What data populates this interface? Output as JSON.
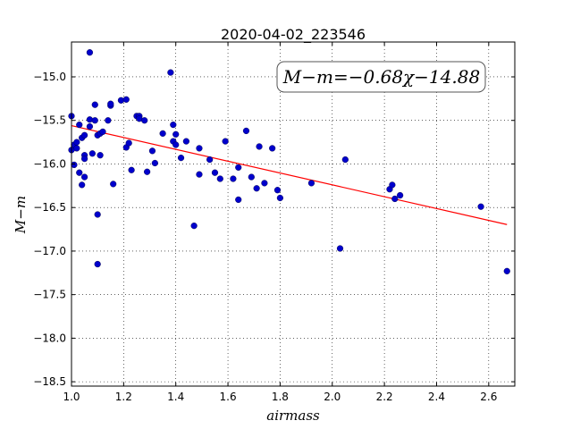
{
  "chart_data": {
    "type": "scatter",
    "title": "2020-04-02_223546",
    "xlabel": "airmass",
    "ylabel": "M−m",
    "xlim": [
      1.0,
      2.7
    ],
    "ylim": [
      -18.55,
      -14.6
    ],
    "y_inverted": false,
    "grid": true,
    "x_ticks": [
      "1.0",
      "1.2",
      "1.4",
      "1.6",
      "1.8",
      "2.0",
      "2.2",
      "2.4",
      "2.6"
    ],
    "x_tick_values": [
      1.0,
      1.2,
      1.4,
      1.6,
      1.8,
      2.0,
      2.2,
      2.4,
      2.6
    ],
    "y_ticks": [
      "−15.0",
      "−15.5",
      "−16.0",
      "−16.5",
      "−17.0",
      "−17.5",
      "−18.0",
      "−18.5"
    ],
    "y_tick_values": [
      -15.0,
      -15.5,
      -16.0,
      -16.5,
      -17.0,
      -17.5,
      -18.0,
      -18.5
    ],
    "annotation": "M−m=−0.68χ−14.88",
    "fit": {
      "slope": -0.68,
      "intercept": -14.88,
      "x_range": [
        1.0,
        2.67
      ],
      "color": "#ff0000"
    },
    "marker_color": "#0000cc",
    "points": [
      {
        "x": 1.0,
        "y": -15.45
      },
      {
        "x": 1.0,
        "y": -15.84
      },
      {
        "x": 1.01,
        "y": -15.78
      },
      {
        "x": 1.01,
        "y": -16.01
      },
      {
        "x": 1.02,
        "y": -15.82
      },
      {
        "x": 1.02,
        "y": -15.75
      },
      {
        "x": 1.03,
        "y": -15.55
      },
      {
        "x": 1.03,
        "y": -16.1
      },
      {
        "x": 1.04,
        "y": -16.24
      },
      {
        "x": 1.04,
        "y": -15.7
      },
      {
        "x": 1.05,
        "y": -15.67
      },
      {
        "x": 1.05,
        "y": -15.9
      },
      {
        "x": 1.05,
        "y": -16.15
      },
      {
        "x": 1.05,
        "y": -15.94
      },
      {
        "x": 1.07,
        "y": -15.57
      },
      {
        "x": 1.07,
        "y": -15.49
      },
      {
        "x": 1.07,
        "y": -14.72
      },
      {
        "x": 1.08,
        "y": -15.88
      },
      {
        "x": 1.09,
        "y": -15.32
      },
      {
        "x": 1.09,
        "y": -15.5
      },
      {
        "x": 1.1,
        "y": -15.67
      },
      {
        "x": 1.1,
        "y": -16.58
      },
      {
        "x": 1.1,
        "y": -17.15
      },
      {
        "x": 1.11,
        "y": -15.9
      },
      {
        "x": 1.11,
        "y": -15.65
      },
      {
        "x": 1.12,
        "y": -15.63
      },
      {
        "x": 1.14,
        "y": -15.5
      },
      {
        "x": 1.15,
        "y": -15.33
      },
      {
        "x": 1.15,
        "y": -15.31
      },
      {
        "x": 1.16,
        "y": -16.23
      },
      {
        "x": 1.19,
        "y": -15.27
      },
      {
        "x": 1.21,
        "y": -15.26
      },
      {
        "x": 1.21,
        "y": -15.81
      },
      {
        "x": 1.22,
        "y": -15.76
      },
      {
        "x": 1.23,
        "y": -16.07
      },
      {
        "x": 1.25,
        "y": -15.45
      },
      {
        "x": 1.26,
        "y": -15.45
      },
      {
        "x": 1.26,
        "y": -15.48
      },
      {
        "x": 1.28,
        "y": -15.5
      },
      {
        "x": 1.29,
        "y": -16.09
      },
      {
        "x": 1.31,
        "y": -15.85
      },
      {
        "x": 1.32,
        "y": -15.99
      },
      {
        "x": 1.35,
        "y": -15.65
      },
      {
        "x": 1.38,
        "y": -14.95
      },
      {
        "x": 1.39,
        "y": -15.74
      },
      {
        "x": 1.39,
        "y": -15.55
      },
      {
        "x": 1.4,
        "y": -15.66
      },
      {
        "x": 1.4,
        "y": -15.78
      },
      {
        "x": 1.42,
        "y": -15.93
      },
      {
        "x": 1.44,
        "y": -15.74
      },
      {
        "x": 1.47,
        "y": -16.71
      },
      {
        "x": 1.49,
        "y": -15.82
      },
      {
        "x": 1.49,
        "y": -16.12
      },
      {
        "x": 1.53,
        "y": -15.95
      },
      {
        "x": 1.55,
        "y": -16.1
      },
      {
        "x": 1.57,
        "y": -16.17
      },
      {
        "x": 1.59,
        "y": -15.74
      },
      {
        "x": 1.62,
        "y": -16.17
      },
      {
        "x": 1.64,
        "y": -16.04
      },
      {
        "x": 1.64,
        "y": -16.41
      },
      {
        "x": 1.67,
        "y": -15.62
      },
      {
        "x": 1.69,
        "y": -16.15
      },
      {
        "x": 1.71,
        "y": -16.28
      },
      {
        "x": 1.72,
        "y": -15.8
      },
      {
        "x": 1.74,
        "y": -16.22
      },
      {
        "x": 1.77,
        "y": -15.82
      },
      {
        "x": 1.79,
        "y": -16.3
      },
      {
        "x": 1.8,
        "y": -16.39
      },
      {
        "x": 1.92,
        "y": -16.22
      },
      {
        "x": 2.03,
        "y": -16.97
      },
      {
        "x": 2.05,
        "y": -15.95
      },
      {
        "x": 2.22,
        "y": -16.29
      },
      {
        "x": 2.23,
        "y": -16.24
      },
      {
        "x": 2.24,
        "y": -16.4
      },
      {
        "x": 2.26,
        "y": -16.36
      },
      {
        "x": 2.57,
        "y": -16.49
      },
      {
        "x": 2.67,
        "y": -17.23
      }
    ]
  }
}
